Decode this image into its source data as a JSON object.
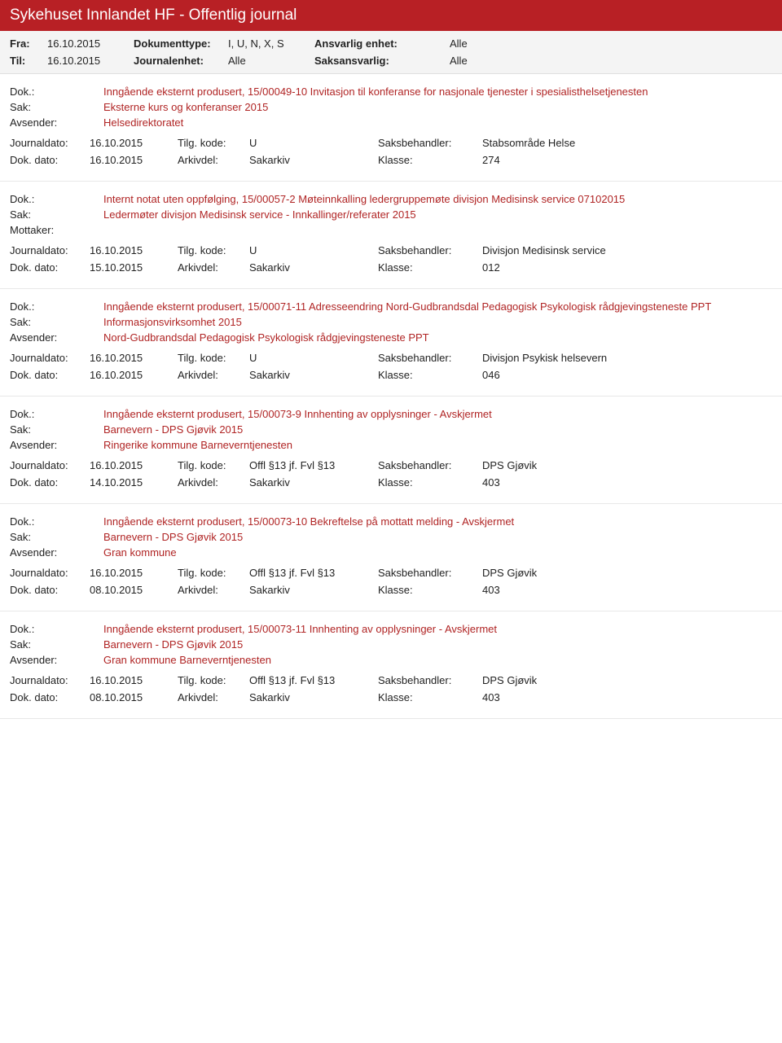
{
  "colors": {
    "header_bg": "#b82025",
    "header_text": "#ffffff",
    "filter_bg": "#f4f4f4",
    "accent_text": "#b02424",
    "body_text": "#222222",
    "border": "#e8e8e8"
  },
  "header": {
    "title": "Sykehuset Innlandet HF - Offentlig journal"
  },
  "filter": {
    "fra_label": "Fra:",
    "fra": "16.10.2015",
    "til_label": "Til:",
    "til": "16.10.2015",
    "doktype_label": "Dokumenttype:",
    "doktype": "I, U, N, X, S",
    "journalenhet_label": "Journalenhet:",
    "journalenhet": "Alle",
    "ansvarlig_label": "Ansvarlig enhet:",
    "ansvarlig": "Alle",
    "saksansvarlig_label": "Saksansvarlig:",
    "saksansvarlig": "Alle"
  },
  "labels": {
    "dok": "Dok.:",
    "sak": "Sak:",
    "avsender": "Avsender:",
    "mottaker": "Mottaker:",
    "journaldato": "Journaldato:",
    "tilgkode": "Tilg. kode:",
    "saksbeh": "Saksbehandler:",
    "dokdato": "Dok. dato:",
    "arkivdel": "Arkivdel:",
    "klasse": "Klasse:"
  },
  "entries": [
    {
      "dok": "Inngående eksternt produsert, 15/00049-10 Invitasjon til konferanse for nasjonale tjenester i spesialisthelsetjenesten",
      "sak": "Eksterne kurs og konferanser 2015",
      "party_label": "Avsender:",
      "party": "Helsedirektoratet",
      "journaldato": "16.10.2015",
      "tilgkode": "U",
      "saksbeh": "Stabsområde Helse",
      "dokdato": "16.10.2015",
      "arkivdel": "Sakarkiv",
      "klasse": "274"
    },
    {
      "dok": "Internt notat uten oppfølging, 15/00057-2 Møteinnkalling ledergruppemøte divisjon Medisinsk service 07102015",
      "sak": "Ledermøter divisjon Medisinsk service - Innkallinger/referater 2015",
      "party_label": "Mottaker:",
      "party": "",
      "journaldato": "16.10.2015",
      "tilgkode": "U",
      "saksbeh": "Divisjon Medisinsk service",
      "dokdato": "15.10.2015",
      "arkivdel": "Sakarkiv",
      "klasse": "012"
    },
    {
      "dok": "Inngående eksternt produsert, 15/00071-11 Adresseendring Nord-Gudbrandsdal Pedagogisk Psykologisk rådgjevingsteneste PPT",
      "sak": "Informasjonsvirksomhet 2015",
      "party_label": "Avsender:",
      "party": "Nord-Gudbrandsdal Pedagogisk Psykologisk rådgjevingsteneste PPT",
      "journaldato": "16.10.2015",
      "tilgkode": "U",
      "saksbeh": "Divisjon Psykisk helsevern",
      "dokdato": "16.10.2015",
      "arkivdel": "Sakarkiv",
      "klasse": "046"
    },
    {
      "dok": "Inngående eksternt produsert, 15/00073-9 Innhenting av opplysninger - Avskjermet",
      "sak": "Barnevern - DPS Gjøvik 2015",
      "party_label": "Avsender:",
      "party": "Ringerike kommune Barneverntjenesten",
      "journaldato": "16.10.2015",
      "tilgkode": "Offl §13 jf. Fvl §13",
      "saksbeh": "DPS Gjøvik",
      "dokdato": "14.10.2015",
      "arkivdel": "Sakarkiv",
      "klasse": "403"
    },
    {
      "dok": "Inngående eksternt produsert, 15/00073-10 Bekreftelse på mottatt melding - Avskjermet",
      "sak": "Barnevern - DPS Gjøvik 2015",
      "party_label": "Avsender:",
      "party": "Gran kommune",
      "journaldato": "16.10.2015",
      "tilgkode": "Offl §13 jf. Fvl §13",
      "saksbeh": "DPS Gjøvik",
      "dokdato": "08.10.2015",
      "arkivdel": "Sakarkiv",
      "klasse": "403"
    },
    {
      "dok": "Inngående eksternt produsert, 15/00073-11 Innhenting av opplysninger - Avskjermet",
      "sak": "Barnevern - DPS Gjøvik 2015",
      "party_label": "Avsender:",
      "party": "Gran kommune Barneverntjenesten",
      "journaldato": "16.10.2015",
      "tilgkode": "Offl §13 jf. Fvl §13",
      "saksbeh": "DPS Gjøvik",
      "dokdato": "08.10.2015",
      "arkivdel": "Sakarkiv",
      "klasse": "403"
    }
  ]
}
